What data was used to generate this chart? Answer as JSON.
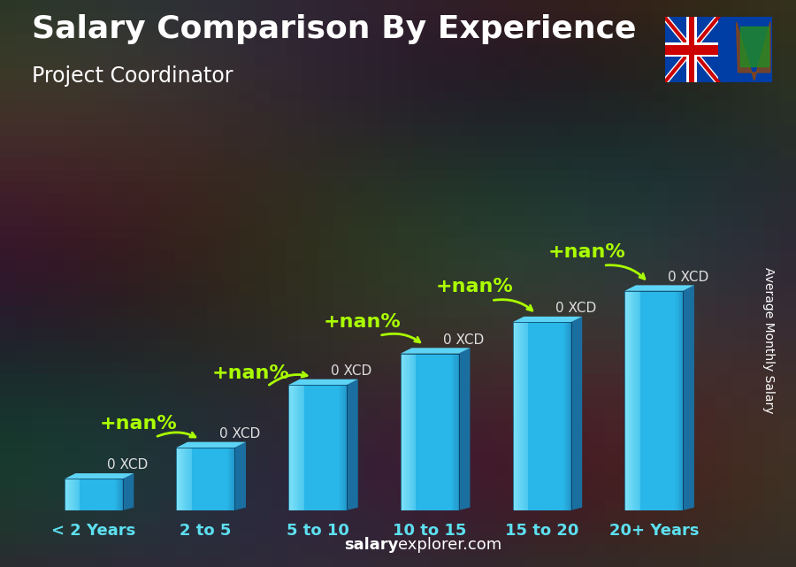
{
  "title": "Salary Comparison By Experience",
  "subtitle": "Project Coordinator",
  "categories": [
    "< 2 Years",
    "2 to 5",
    "5 to 10",
    "10 to 15",
    "15 to 20",
    "20+ Years"
  ],
  "values": [
    1,
    2,
    4,
    5,
    6,
    7
  ],
  "bar_label": "0 XCD",
  "pct_label": "+nan%",
  "bar_color_front": "#29b6e8",
  "bar_color_light": "#7de0f8",
  "bar_color_side": "#1a6fa0",
  "bar_color_top": "#5dd4f5",
  "ylabel": "Average Monthly Salary",
  "title_color": "#ffffff",
  "subtitle_color": "#ffffff",
  "category_color": "#5de0f0",
  "ylabel_color": "#ffffff",
  "pct_color": "#aaff00",
  "xcd_color": "#e0e0e0",
  "arrow_color": "#aaff00",
  "title_fontsize": 26,
  "subtitle_fontsize": 17,
  "category_fontsize": 13,
  "ylabel_fontsize": 10,
  "pct_fontsize": 16,
  "xcd_fontsize": 11,
  "bar_width": 0.52,
  "bg_dark": "#1a1e2a",
  "bg_mid": "#2a3040",
  "footer_bold": "salary",
  "footer_rest": "explorer.com",
  "footer_fontsize": 13
}
